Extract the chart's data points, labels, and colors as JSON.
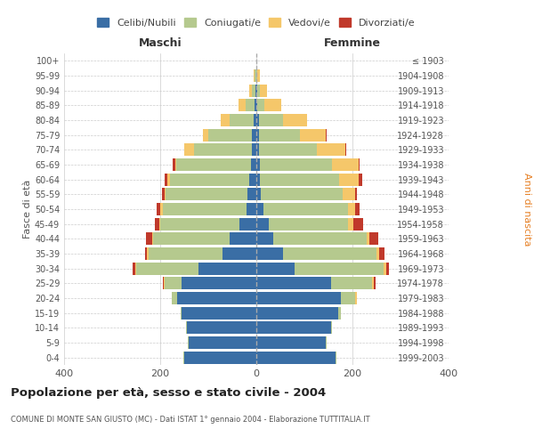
{
  "age_groups": [
    "0-4",
    "5-9",
    "10-14",
    "15-19",
    "20-24",
    "25-29",
    "30-34",
    "35-39",
    "40-44",
    "45-49",
    "50-54",
    "55-59",
    "60-64",
    "65-69",
    "70-74",
    "75-79",
    "80-84",
    "85-89",
    "90-94",
    "95-99",
    "100+"
  ],
  "birth_years": [
    "1999-2003",
    "1994-1998",
    "1989-1993",
    "1984-1988",
    "1979-1983",
    "1974-1978",
    "1969-1973",
    "1964-1968",
    "1959-1963",
    "1954-1958",
    "1949-1953",
    "1944-1948",
    "1939-1943",
    "1934-1938",
    "1929-1933",
    "1924-1928",
    "1919-1923",
    "1914-1918",
    "1909-1913",
    "1904-1908",
    "≤ 1903"
  ],
  "male": {
    "celibi": [
      150,
      140,
      145,
      155,
      165,
      155,
      120,
      70,
      55,
      35,
      20,
      18,
      15,
      12,
      10,
      10,
      5,
      4,
      2,
      0,
      0
    ],
    "coniugati": [
      2,
      2,
      2,
      3,
      10,
      35,
      130,
      155,
      160,
      165,
      175,
      170,
      165,
      155,
      120,
      90,
      50,
      18,
      8,
      3,
      0
    ],
    "vedovi": [
      0,
      0,
      0,
      0,
      0,
      2,
      2,
      2,
      2,
      2,
      5,
      3,
      5,
      2,
      20,
      12,
      20,
      15,
      5,
      2,
      0
    ],
    "divorziati": [
      0,
      0,
      0,
      0,
      0,
      3,
      5,
      5,
      12,
      10,
      8,
      5,
      5,
      5,
      0,
      0,
      0,
      0,
      0,
      0,
      0
    ]
  },
  "female": {
    "nubili": [
      165,
      145,
      155,
      170,
      175,
      155,
      80,
      55,
      35,
      25,
      15,
      10,
      8,
      8,
      5,
      5,
      5,
      2,
      2,
      0,
      0
    ],
    "coniugate": [
      2,
      2,
      3,
      5,
      30,
      85,
      185,
      195,
      195,
      165,
      175,
      170,
      165,
      150,
      120,
      85,
      50,
      15,
      5,
      2,
      0
    ],
    "vedove": [
      0,
      0,
      0,
      0,
      5,
      5,
      5,
      5,
      5,
      12,
      15,
      25,
      40,
      55,
      60,
      55,
      50,
      35,
      15,
      5,
      0
    ],
    "divorziate": [
      0,
      0,
      0,
      0,
      0,
      3,
      5,
      12,
      18,
      20,
      10,
      5,
      8,
      2,
      2,
      2,
      0,
      0,
      0,
      0,
      0
    ]
  },
  "colors": {
    "celibi": "#3a6ea5",
    "coniugati": "#b5c98e",
    "vedovi": "#f5c76a",
    "divorziati": "#c0392b"
  },
  "title": "Popolazione per età, sesso e stato civile - 2004",
  "subtitle": "COMUNE DI MONTE SAN GIUSTO (MC) - Dati ISTAT 1° gennaio 2004 - Elaborazione TUTTITALIA.IT",
  "xlabel_left": "Maschi",
  "xlabel_right": "Femmine",
  "ylabel_left": "Fasce di età",
  "ylabel_right": "Anni di nascita",
  "xlim": 400,
  "bg_color": "#ffffff",
  "grid_color": "#cccccc"
}
